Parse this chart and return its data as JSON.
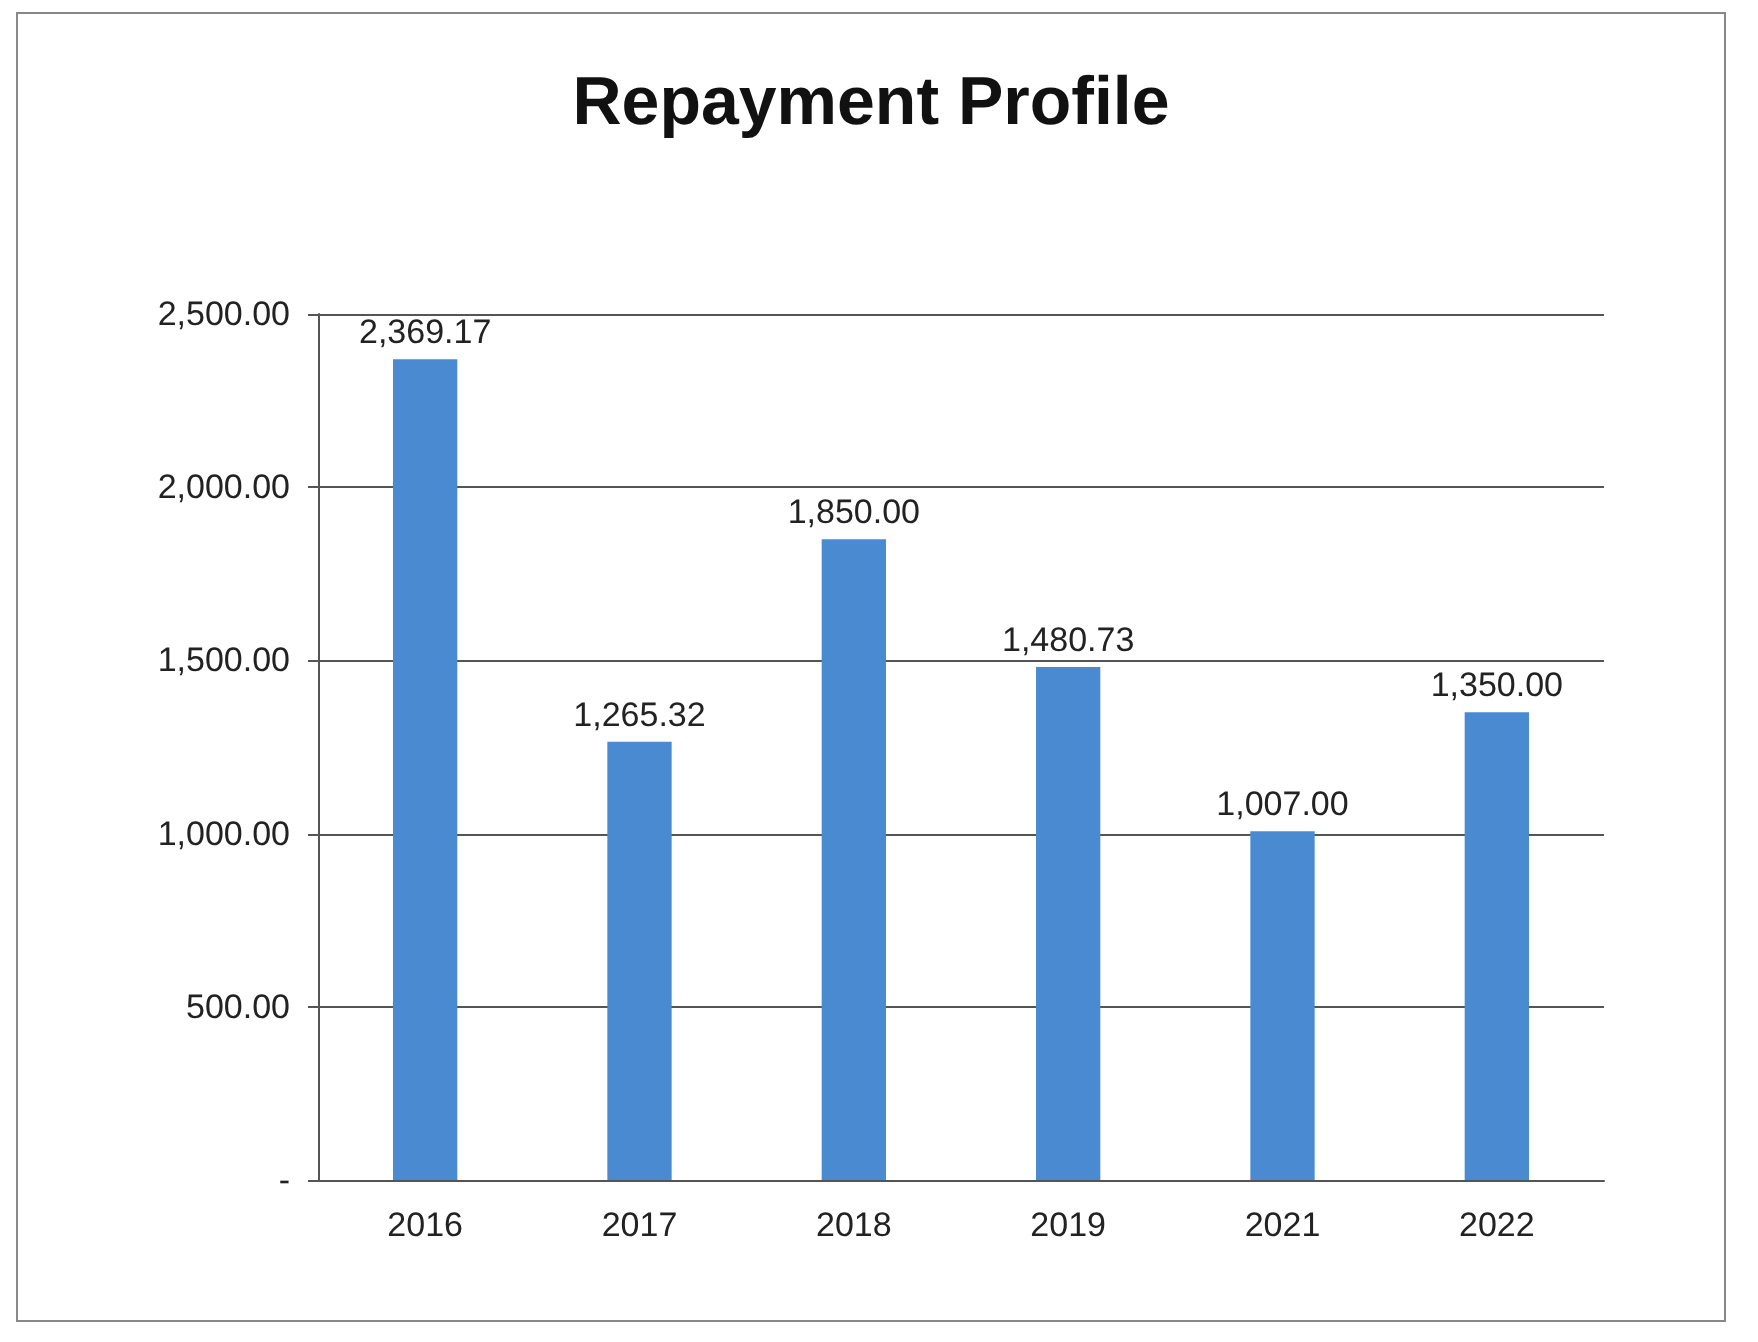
{
  "chart_data": {
    "type": "bar",
    "title": "Repayment Profile",
    "categories": [
      "2016",
      "2017",
      "2018",
      "2019",
      "2021",
      "2022"
    ],
    "values": [
      2369.17,
      1265.32,
      1850.0,
      1480.73,
      1007.0,
      1350.0
    ],
    "value_labels": [
      "2,369.17",
      "1,265.32",
      "1,850.00",
      "1,480.73",
      "1,007.00",
      "1,350.00"
    ],
    "color": "#4a8ad0",
    "ylim": [
      0,
      2500
    ],
    "yticks": [
      {
        "value": 0,
        "label": "-"
      },
      {
        "value": 500,
        "label": "500.00"
      },
      {
        "value": 1000,
        "label": "1,000.00"
      },
      {
        "value": 1500,
        "label": "1,500.00"
      },
      {
        "value": 2000,
        "label": "2,000.00"
      },
      {
        "value": 2500,
        "label": "2,500.00"
      }
    ],
    "grid": "y"
  }
}
